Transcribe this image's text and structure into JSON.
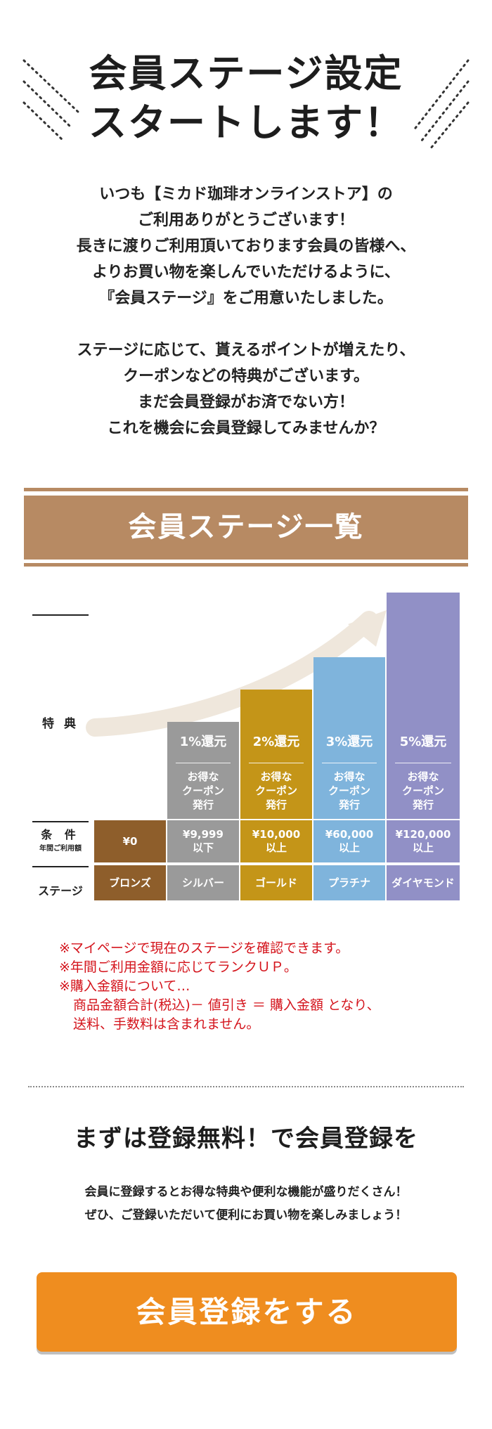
{
  "hero": {
    "title_line1": "会員ステージ設定",
    "title_line2": "スタートします！"
  },
  "intro": {
    "lines": [
      "いつも【ミカド珈琲オンラインストア】の",
      "ご利用ありがとうございます！",
      "長きに渡りご利用頂いております会員の皆様へ、",
      "よりお買い物を楽しんでいただけるように、",
      "『会員ステージ』をご用意いたしました。",
      "ステージに応じて、貰えるポイントが増えたり、",
      "クーポンなどの特典がございます。",
      "まだ会員登録がお済でない方！",
      "これを機会に会員登録してみませんか？"
    ]
  },
  "section": {
    "title": "会員ステージ一覧"
  },
  "chart_data": {
    "type": "table",
    "row_labels": {
      "benefit": "特 典",
      "condition": "条 件",
      "condition_sub": "年間ご利用額",
      "stage": "ステージ"
    },
    "columns": [
      {
        "stage": "ブロンズ",
        "condition_line1": "¥0",
        "condition_line2": "",
        "return_pct": 0,
        "benefit": "",
        "coupon": [],
        "color": "#8e5e2b"
      },
      {
        "stage": "シルバー",
        "condition_line1": "¥9,999",
        "condition_line2": "以下",
        "return_pct": 1,
        "benefit": "1%還元",
        "coupon": [
          "お得な",
          "クーポン",
          "発行"
        ],
        "color": "#9a9a9a"
      },
      {
        "stage": "ゴールド",
        "condition_line1": "¥10,000",
        "condition_line2": "以上",
        "return_pct": 2,
        "benefit": "2%還元",
        "coupon": [
          "お得な",
          "クーポン",
          "発行"
        ],
        "color": "#c49518"
      },
      {
        "stage": "プラチナ",
        "condition_line1": "¥60,000",
        "condition_line2": "以上",
        "return_pct": 3,
        "benefit": "3%還元",
        "coupon": [
          "お得な",
          "クーポン",
          "発行"
        ],
        "color": "#7fb4dc"
      },
      {
        "stage": "ダイヤモンド",
        "condition_line1": "¥120,000",
        "condition_line2": "以上",
        "return_pct": 5,
        "benefit": "5%還元",
        "coupon": [
          "お得な",
          "クーポン",
          "発行"
        ],
        "color": "#9190c6"
      }
    ]
  },
  "notes": {
    "items": [
      "※マイページで現在のステージを確認できます。",
      "※年間ご利用金額に応じてランクＵＰ。",
      "※購入金額について…"
    ],
    "detail": [
      "商品金額合計(税込)－ 値引き ＝ 購入金額 となり、",
      "送料、手数料は含まれません。"
    ]
  },
  "cta": {
    "heading": "まずは登録無料！で会員登録を",
    "text_line1": "会員に登録するとお得な特典や便利な機能が盛りだくさん！",
    "text_line2": "ぜひ、ご登録いただいて便利にお買い物を楽しみましょう！",
    "button_label": "会員登録をする"
  }
}
